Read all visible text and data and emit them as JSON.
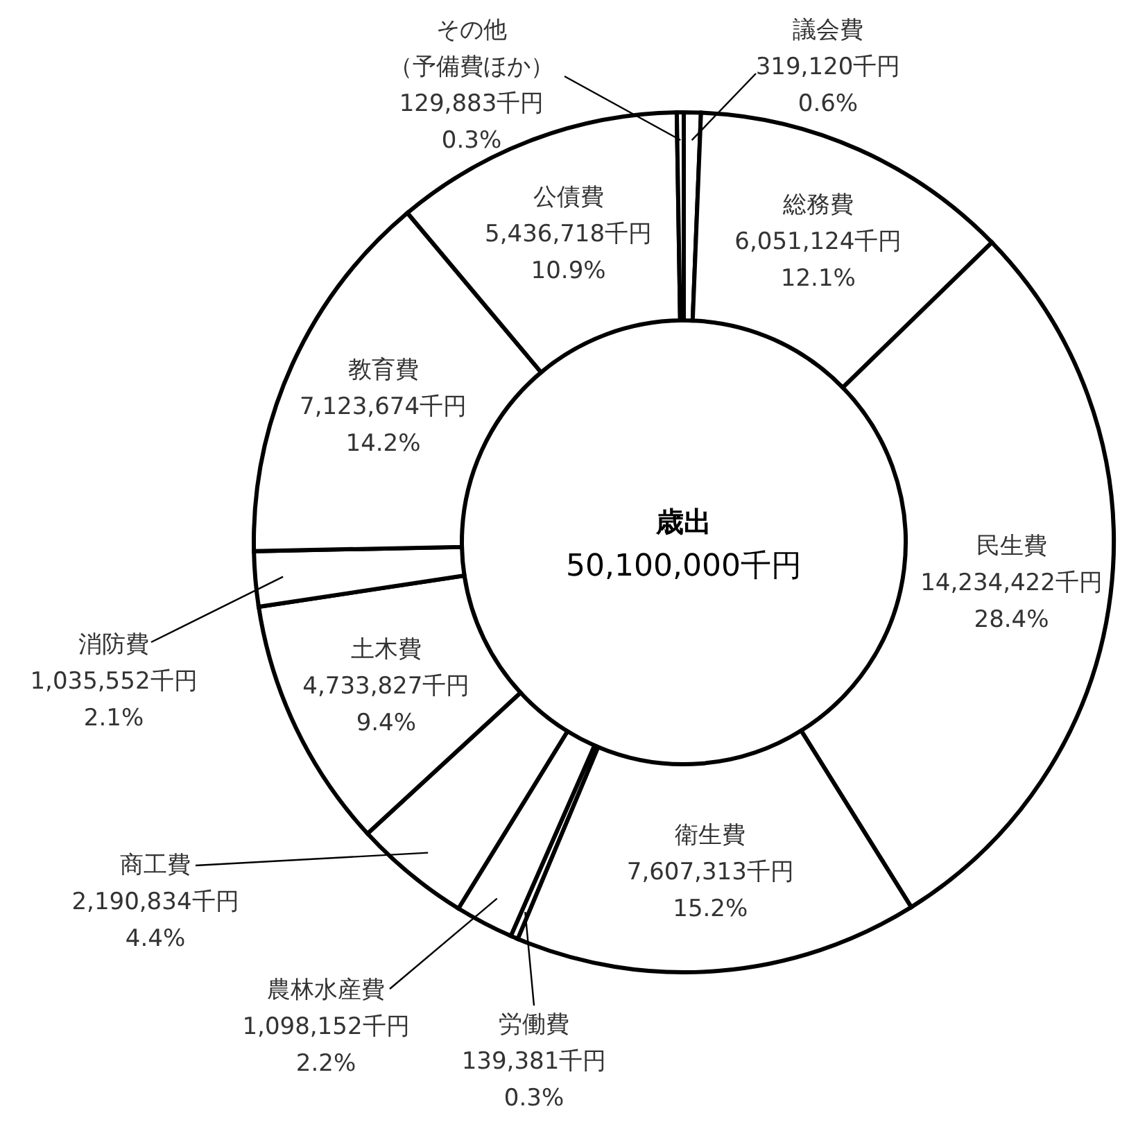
{
  "chart_data": {
    "type": "donut",
    "title": "歳出",
    "subtitle": "50,100,000千円",
    "categories": [
      "議会費",
      "総務費",
      "民生費",
      "衛生費",
      "労働費",
      "農林水産費",
      "商工費",
      "土木費",
      "消防費",
      "教育費",
      "公債費",
      "その他（予備費ほか）"
    ],
    "values": [
      319120,
      6051124,
      14234422,
      7607313,
      139381,
      1098152,
      2190834,
      4733827,
      1035552,
      7123674,
      5436718,
      129883
    ],
    "value_labels": [
      "319,120千円\n0.6%",
      "6,051,124千円\n12.1%",
      "14,234,422千円\n28.4%",
      "7,607,313千円\n15.2%",
      "139,381千円\n0.3%",
      "1,098,152千円\n2.2%",
      "2,190,834千円\n4.4%",
      "4,733,827千円\n9.4%",
      "1,035,552千円\n2.1%",
      "7,123,674千円\n14.2%",
      "5,436,718千円\n10.9%",
      "129,883千円\n0.3%"
    ],
    "colors": [
      "#ffffff",
      "#ffffff",
      "#ffffff",
      "#ffffff",
      "#ffffff",
      "#ffffff",
      "#ffffff",
      "#ffffff",
      "#ffffff",
      "#ffffff",
      "#ffffff",
      "#ffffff"
    ],
    "legend": false
  }
}
